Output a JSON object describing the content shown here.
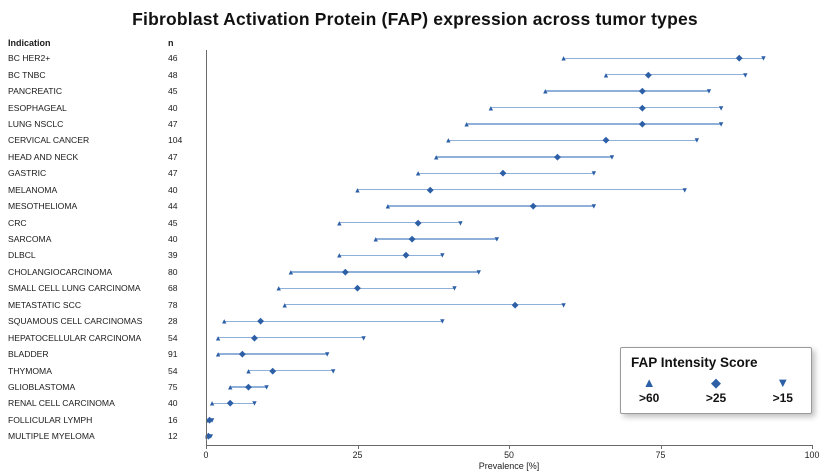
{
  "title": "Fibroblast Activation Protein (FAP) expression across tumor types",
  "columns": {
    "indication": "Indication",
    "n": "n"
  },
  "axis": {
    "label": "Prevalence [%]",
    "min": 0,
    "max": 100,
    "ticks": [
      0,
      25,
      50,
      75,
      100
    ]
  },
  "legend": {
    "title": "FAP Intensity Score",
    "items": [
      {
        "marker": "triangle-up-icon",
        "glyph": "▲",
        "label": ">60"
      },
      {
        "marker": "diamond-icon",
        "glyph": "◆",
        "label": ">25"
      },
      {
        "marker": "triangle-down-icon",
        "glyph": "▼",
        "label": ">15"
      }
    ]
  },
  "colors": {
    "marker": "#2d5fa7",
    "line": "#8fb0d8"
  },
  "chart_data": {
    "type": "scatter",
    "variant": "range-dot-forest-plot",
    "xlabel": "Prevalence [%]",
    "xlim": [
      0,
      100
    ],
    "grid": false,
    "series_meaning": "Each row shows prevalence of FAP intensity score thresholds: triangle-up = >60 (low end), diamond = >25 (middle), triangle-down = >15 (high end)",
    "rows": [
      {
        "indication": "BC HER2+",
        "n": 46,
        "gt60": 59,
        "gt25": 88,
        "gt15": 92
      },
      {
        "indication": "BC TNBC",
        "n": 48,
        "gt60": 66,
        "gt25": 73,
        "gt15": 89
      },
      {
        "indication": "PANCREATIC",
        "n": 45,
        "gt60": 56,
        "gt25": 72,
        "gt15": 83
      },
      {
        "indication": "ESOPHAGEAL",
        "n": 40,
        "gt60": 47,
        "gt25": 72,
        "gt15": 85
      },
      {
        "indication": "LUNG NSCLC",
        "n": 47,
        "gt60": 43,
        "gt25": 72,
        "gt15": 85
      },
      {
        "indication": "CERVICAL CANCER",
        "n": 104,
        "gt60": 40,
        "gt25": 66,
        "gt15": 81
      },
      {
        "indication": "HEAD AND NECK",
        "n": 47,
        "gt60": 38,
        "gt25": 58,
        "gt15": 67
      },
      {
        "indication": "GASTRIC",
        "n": 47,
        "gt60": 35,
        "gt25": 49,
        "gt15": 64
      },
      {
        "indication": "MELANOMA",
        "n": 40,
        "gt60": 25,
        "gt25": 37,
        "gt15": 79
      },
      {
        "indication": "MESOTHELIOMA",
        "n": 44,
        "gt60": 30,
        "gt25": 54,
        "gt15": 64
      },
      {
        "indication": "CRC",
        "n": 45,
        "gt60": 22,
        "gt25": 35,
        "gt15": 42
      },
      {
        "indication": "SARCOMA",
        "n": 40,
        "gt60": 28,
        "gt25": 34,
        "gt15": 48
      },
      {
        "indication": "DLBCL",
        "n": 39,
        "gt60": 22,
        "gt25": 33,
        "gt15": 39
      },
      {
        "indication": "CHOLANGIOCARCINOMA",
        "n": 80,
        "gt60": 14,
        "gt25": 23,
        "gt15": 45
      },
      {
        "indication": "SMALL CELL LUNG CARCINOMA",
        "n": 68,
        "gt60": 12,
        "gt25": 25,
        "gt15": 41
      },
      {
        "indication": "METASTATIC SCC",
        "n": 78,
        "gt60": 13,
        "gt25": 51,
        "gt15": 59
      },
      {
        "indication": "SQUAMOUS CELL CARCINOMAS",
        "n": 28,
        "gt60": 3,
        "gt25": 9,
        "gt15": 39
      },
      {
        "indication": "HEPATOCELLULAR CARCINOMA",
        "n": 54,
        "gt60": 2,
        "gt25": 8,
        "gt15": 26
      },
      {
        "indication": "BLADDER",
        "n": 91,
        "gt60": 2,
        "gt25": 6,
        "gt15": 20
      },
      {
        "indication": "THYMOMA",
        "n": 54,
        "gt60": 7,
        "gt25": 11,
        "gt15": 21
      },
      {
        "indication": "GLIOBLASTOMA",
        "n": 75,
        "gt60": 4,
        "gt25": 7,
        "gt15": 10
      },
      {
        "indication": "RENAL CELL CARCINOMA",
        "n": 40,
        "gt60": 1,
        "gt25": 4,
        "gt15": 8
      },
      {
        "indication": "FOLLICULAR LYMPH",
        "n": 16,
        "gt60": 0.3,
        "gt25": 0.6,
        "gt15": 1
      },
      {
        "indication": "MULTIPLE MYELOMA",
        "n": 12,
        "gt60": 0.2,
        "gt25": 0.4,
        "gt15": 0.8
      }
    ]
  }
}
